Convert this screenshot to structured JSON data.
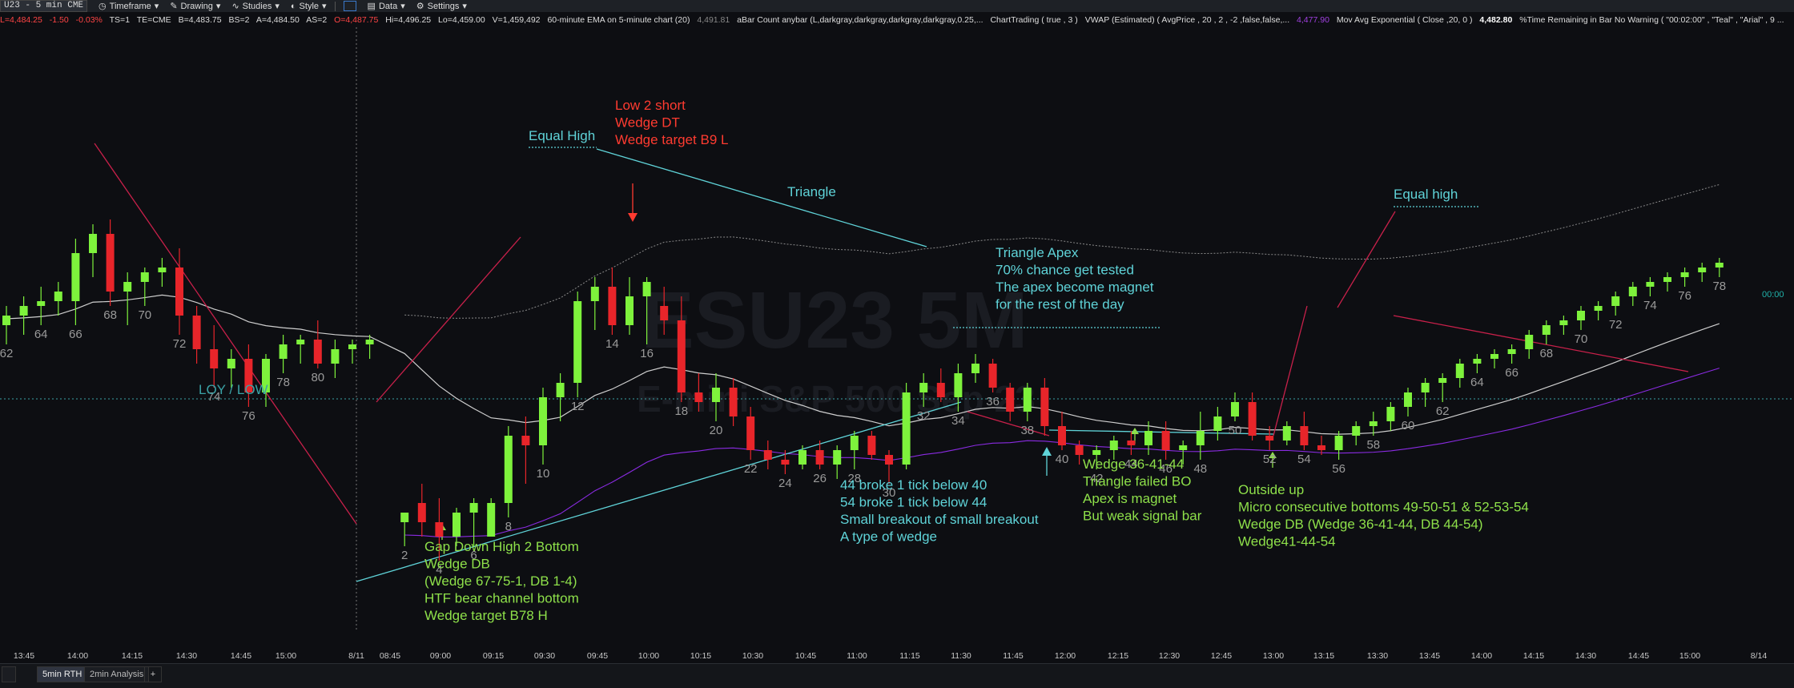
{
  "toolbar": {
    "symbol": "U23 - 5 min  CME",
    "timeframe": "Timeframe",
    "drawing": "Drawing",
    "studies": "Studies",
    "style": "Style",
    "data": "Data",
    "settings": "Settings"
  },
  "infoline": {
    "price": "L=4,484.25",
    "change": "-1.50",
    "pct": "-0.03%",
    "ts": "TS=1",
    "te": "TE=CME",
    "bid": "B=4,483.75",
    "bs": "BS=2",
    "ask": "A=4,484.50",
    "as": "AS=2",
    "open": "O=4,487.75",
    "hi": "Hi=4,496.25",
    "lo": "Lo=4,459.00",
    "vol": "V=1,459,492",
    "ema": "60-minute EMA on 5-minute chart (20)",
    "ema_val": "4,491.81",
    "abar": "aBar Count anybar (L,darkgray,darkgray,darkgray,darkgray,0.25,...",
    "chart_trading": "ChartTrading ( true , 3 )",
    "vwap": "VWAP (Estimated) ( AvgPrice , 20 , 2 , -2 ,false,false,...",
    "vwap_val": "4,477.90",
    "mov_avg": "Mov Avg Exponential ( Close ,20, 0 )",
    "mov_avg_val": "4,482.80",
    "time_remaining": "%Time Remaining in Bar No Warning ( \"00:02:00\" , \"Teal\" , \"Arial\" , 9 ..."
  },
  "tabs": [
    "5min RTH",
    "2min Analysis"
  ],
  "colors": {
    "bull": "#7ef23c",
    "bear": "#e8252a",
    "ema": "#cfcfcf",
    "vwap": "#8a2be2",
    "teal": "#5fd3d8",
    "green_text": "#8ee04a",
    "red_text": "#ff3b30",
    "crimson_line": "#c8204a",
    "gray_dotted": "#8a8a8a"
  },
  "chart_data": {
    "type": "candlestick",
    "watermark_symbol": "ESU23 5M",
    "watermark_name": "E-mini S&P 500 Sep 23",
    "price_label": "00:00",
    "time_labels": [
      "13:45",
      "14:00",
      "14:15",
      "14:30",
      "14:45",
      "15:00",
      "8/11",
      "08:45",
      "09:00",
      "09:15",
      "09:30",
      "09:45",
      "10:00",
      "10:15",
      "10:30",
      "10:45",
      "11:00",
      "11:15",
      "11:30",
      "11:45",
      "12:00",
      "12:15",
      "12:30",
      "12:45",
      "13:00",
      "13:15",
      "13:30",
      "13:45",
      "14:00",
      "14:15",
      "14:30",
      "14:45",
      "15:00",
      "8/14"
    ],
    "bar_numbers": [
      {
        "label": "62",
        "bar": 0
      },
      {
        "label": "64",
        "bar": 2
      },
      {
        "label": "66",
        "bar": 4
      },
      {
        "label": "68",
        "bar": 6
      },
      {
        "label": "70",
        "bar": 8
      },
      {
        "label": "72",
        "bar": 10
      },
      {
        "label": "74",
        "bar": 12
      },
      {
        "label": "76",
        "bar": 14
      },
      {
        "label": "78",
        "bar": 16
      },
      {
        "label": "80",
        "bar": 18
      },
      {
        "label": "2",
        "bar": 22
      },
      {
        "label": "4",
        "bar": 24
      },
      {
        "label": "6",
        "bar": 26
      },
      {
        "label": "8",
        "bar": 28
      },
      {
        "label": "10",
        "bar": 30
      },
      {
        "label": "12",
        "bar": 32
      },
      {
        "label": "14",
        "bar": 34
      },
      {
        "label": "16",
        "bar": 36
      },
      {
        "label": "18",
        "bar": 38
      },
      {
        "label": "20",
        "bar": 40
      },
      {
        "label": "22",
        "bar": 42
      },
      {
        "label": "24",
        "bar": 44
      },
      {
        "label": "26",
        "bar": 46
      },
      {
        "label": "28",
        "bar": 48
      },
      {
        "label": "30",
        "bar": 50
      },
      {
        "label": "32",
        "bar": 52
      },
      {
        "label": "34",
        "bar": 54
      },
      {
        "label": "36",
        "bar": 56
      },
      {
        "label": "38",
        "bar": 58
      },
      {
        "label": "40",
        "bar": 60
      },
      {
        "label": "42",
        "bar": 62
      },
      {
        "label": "44",
        "bar": 64
      },
      {
        "label": "46",
        "bar": 66
      },
      {
        "label": "48",
        "bar": 68
      },
      {
        "label": "50",
        "bar": 70
      },
      {
        "label": "52",
        "bar": 72
      },
      {
        "label": "54",
        "bar": 74
      },
      {
        "label": "56",
        "bar": 76
      },
      {
        "label": "58",
        "bar": 78
      },
      {
        "label": "60",
        "bar": 80
      },
      {
        "label": "62",
        "bar": 82
      },
      {
        "label": "64",
        "bar": 84
      },
      {
        "label": "66",
        "bar": 86
      },
      {
        "label": "68",
        "bar": 88
      },
      {
        "label": "70",
        "bar": 90
      },
      {
        "label": "72",
        "bar": 92
      },
      {
        "label": "74",
        "bar": 94
      },
      {
        "label": "76",
        "bar": 96
      },
      {
        "label": "78",
        "bar": 98
      },
      {
        "label": "80",
        "bar": 100
      }
    ],
    "bars": [
      {
        "o": 62,
        "h": 58,
        "l": 66,
        "c": 60
      },
      {
        "o": 60,
        "h": 56,
        "l": 64,
        "c": 58
      },
      {
        "o": 58,
        "h": 54,
        "l": 62,
        "c": 57
      },
      {
        "o": 57,
        "h": 53,
        "l": 60,
        "c": 55
      },
      {
        "o": 57,
        "h": 44,
        "l": 62,
        "c": 47
      },
      {
        "o": 47,
        "h": 41,
        "l": 52,
        "c": 43
      },
      {
        "o": 43,
        "h": 40,
        "l": 58,
        "c": 55
      },
      {
        "o": 55,
        "h": 51,
        "l": 62,
        "c": 53
      },
      {
        "o": 53,
        "h": 50,
        "l": 58,
        "c": 51
      },
      {
        "o": 51,
        "h": 48,
        "l": 54,
        "c": 50
      },
      {
        "o": 50,
        "h": 46,
        "l": 64,
        "c": 60
      },
      {
        "o": 60,
        "h": 58,
        "l": 70,
        "c": 67
      },
      {
        "o": 67,
        "h": 62,
        "l": 75,
        "c": 71
      },
      {
        "o": 71,
        "h": 67,
        "l": 75,
        "c": 69
      },
      {
        "o": 69,
        "h": 66,
        "l": 79,
        "c": 76
      },
      {
        "o": 76,
        "h": 68,
        "l": 79,
        "c": 69
      },
      {
        "o": 69,
        "h": 64,
        "l": 72,
        "c": 66
      },
      {
        "o": 66,
        "h": 64,
        "l": 70,
        "c": 65
      },
      {
        "o": 65,
        "h": 61,
        "l": 71,
        "c": 70
      },
      {
        "o": 70,
        "h": 65,
        "l": 73,
        "c": 67
      },
      {
        "o": 67,
        "h": 65,
        "l": 70,
        "c": 66
      },
      {
        "o": 66,
        "h": 64,
        "l": 69,
        "c": 65
      },
      {
        "o": 103,
        "h": 101,
        "l": 108,
        "c": 101
      },
      {
        "o": 99,
        "h": 95,
        "l": 106,
        "c": 103
      },
      {
        "o": 103,
        "h": 98,
        "l": 111,
        "c": 106
      },
      {
        "o": 106,
        "h": 100,
        "l": 108,
        "c": 101
      },
      {
        "o": 101,
        "h": 98,
        "l": 108,
        "c": 99
      },
      {
        "o": 106,
        "h": 98,
        "l": 106,
        "c": 99
      },
      {
        "o": 99,
        "h": 83,
        "l": 102,
        "c": 85
      },
      {
        "o": 85,
        "h": 81,
        "l": 95,
        "c": 87
      },
      {
        "o": 87,
        "h": 75,
        "l": 91,
        "c": 77
      },
      {
        "o": 77,
        "h": 72,
        "l": 82,
        "c": 74
      },
      {
        "o": 74,
        "h": 55,
        "l": 77,
        "c": 57
      },
      {
        "o": 57,
        "h": 52,
        "l": 63,
        "c": 54
      },
      {
        "o": 54,
        "h": 50,
        "l": 64,
        "c": 62
      },
      {
        "o": 62,
        "h": 52,
        "l": 64,
        "c": 56
      },
      {
        "o": 56,
        "h": 52,
        "l": 66,
        "c": 53
      },
      {
        "o": 58,
        "h": 54,
        "l": 64,
        "c": 61
      },
      {
        "o": 61,
        "h": 56,
        "l": 78,
        "c": 76
      },
      {
        "o": 76,
        "h": 72,
        "l": 80,
        "c": 78
      },
      {
        "o": 78,
        "h": 72,
        "l": 82,
        "c": 75
      },
      {
        "o": 75,
        "h": 73,
        "l": 83,
        "c": 81
      },
      {
        "o": 81,
        "h": 79,
        "l": 90,
        "c": 88
      },
      {
        "o": 88,
        "h": 86,
        "l": 92,
        "c": 90
      },
      {
        "o": 90,
        "h": 88,
        "l": 93,
        "c": 91
      },
      {
        "o": 91,
        "h": 87,
        "l": 92,
        "c": 88
      },
      {
        "o": 88,
        "h": 86,
        "l": 92,
        "c": 91
      },
      {
        "o": 91,
        "h": 87,
        "l": 94,
        "c": 88
      },
      {
        "o": 88,
        "h": 84,
        "l": 92,
        "c": 85
      },
      {
        "o": 85,
        "h": 84,
        "l": 90,
        "c": 89
      },
      {
        "o": 89,
        "h": 88,
        "l": 95,
        "c": 91
      },
      {
        "o": 91,
        "h": 74,
        "l": 92,
        "c": 76
      },
      {
        "o": 76,
        "h": 72,
        "l": 79,
        "c": 74
      },
      {
        "o": 74,
        "h": 71,
        "l": 78,
        "c": 77
      },
      {
        "o": 77,
        "h": 70,
        "l": 80,
        "c": 72
      },
      {
        "o": 72,
        "h": 68,
        "l": 74,
        "c": 70
      },
      {
        "o": 70,
        "h": 69,
        "l": 76,
        "c": 75
      },
      {
        "o": 75,
        "h": 74,
        "l": 82,
        "c": 80
      },
      {
        "o": 80,
        "h": 74,
        "l": 82,
        "c": 75
      },
      {
        "o": 75,
        "h": 73,
        "l": 85,
        "c": 83
      },
      {
        "o": 83,
        "h": 80,
        "l": 88,
        "c": 87
      },
      {
        "o": 87,
        "h": 86,
        "l": 91,
        "c": 89
      },
      {
        "o": 89,
        "h": 87,
        "l": 92,
        "c": 88
      },
      {
        "o": 88,
        "h": 85,
        "l": 90,
        "c": 86
      },
      {
        "o": 86,
        "h": 84,
        "l": 89,
        "c": 87
      },
      {
        "o": 87,
        "h": 82,
        "l": 89,
        "c": 84
      },
      {
        "o": 84,
        "h": 82,
        "l": 90,
        "c": 88
      },
      {
        "o": 88,
        "h": 86,
        "l": 91,
        "c": 87
      },
      {
        "o": 87,
        "h": 80,
        "l": 90,
        "c": 84
      },
      {
        "o": 84,
        "h": 79,
        "l": 86,
        "c": 81
      },
      {
        "o": 81,
        "h": 76,
        "l": 82,
        "c": 78
      },
      {
        "o": 78,
        "h": 76,
        "l": 86,
        "c": 85
      },
      {
        "o": 85,
        "h": 83,
        "l": 88,
        "c": 86
      },
      {
        "o": 86,
        "h": 82,
        "l": 87,
        "c": 83
      },
      {
        "o": 83,
        "h": 80,
        "l": 88,
        "c": 87
      },
      {
        "o": 87,
        "h": 85,
        "l": 89,
        "c": 88
      },
      {
        "o": 88,
        "h": 84,
        "l": 90,
        "c": 85
      },
      {
        "o": 85,
        "h": 82,
        "l": 87,
        "c": 83
      },
      {
        "o": 83,
        "h": 80,
        "l": 85,
        "c": 82
      },
      {
        "o": 82,
        "h": 78,
        "l": 84,
        "c": 79
      },
      {
        "o": 79,
        "h": 75,
        "l": 81,
        "c": 76
      },
      {
        "o": 76,
        "h": 73,
        "l": 79,
        "c": 74
      },
      {
        "o": 74,
        "h": 72,
        "l": 78,
        "c": 73
      },
      {
        "o": 73,
        "h": 69,
        "l": 75,
        "c": 70
      },
      {
        "o": 70,
        "h": 68,
        "l": 72,
        "c": 69
      },
      {
        "o": 69,
        "h": 67,
        "l": 71,
        "c": 68
      },
      {
        "o": 68,
        "h": 66,
        "l": 70,
        "c": 67
      },
      {
        "o": 67,
        "h": 63,
        "l": 69,
        "c": 64
      },
      {
        "o": 64,
        "h": 61,
        "l": 66,
        "c": 62
      },
      {
        "o": 62,
        "h": 60,
        "l": 64,
        "c": 61
      },
      {
        "o": 61,
        "h": 58,
        "l": 63,
        "c": 59
      },
      {
        "o": 59,
        "h": 57,
        "l": 61,
        "c": 58
      },
      {
        "o": 58,
        "h": 55,
        "l": 60,
        "c": 56
      },
      {
        "o": 56,
        "h": 53,
        "l": 58,
        "c": 54
      },
      {
        "o": 54,
        "h": 52,
        "l": 56,
        "c": 53
      },
      {
        "o": 53,
        "h": 51,
        "l": 55,
        "c": 52
      },
      {
        "o": 52,
        "h": 50,
        "l": 54,
        "c": 51
      },
      {
        "o": 51,
        "h": 49,
        "l": 53,
        "c": 50
      },
      {
        "o": 50,
        "h": 48,
        "l": 52,
        "c": 49
      }
    ],
    "annotations": [
      {
        "id": "gap-down",
        "color": "green",
        "lines": [
          "Gap Down High 2 Bottom",
          "Wedge DB",
          "(Wedge 67-75-1, DB 1-4)",
          "HTF bear channel bottom",
          "Wedge target B78 H"
        ]
      },
      {
        "id": "low2-short",
        "color": "red",
        "lines": [
          "Low 2 short",
          "Wedge DT",
          "Wedge target B9 L"
        ]
      },
      {
        "id": "equal-high-1",
        "color": "teal",
        "lines": [
          "Equal High"
        ]
      },
      {
        "id": "triangle",
        "color": "teal",
        "lines": [
          "Triangle"
        ]
      },
      {
        "id": "triangle-apex",
        "color": "teal",
        "lines": [
          "Triangle Apex",
          "70% chance get tested",
          "The apex become magnet",
          "for the rest of the day"
        ]
      },
      {
        "id": "small-breakout",
        "color": "teal",
        "lines": [
          "44 broke 1 tick below 40",
          "54 broke 1 tick below 44",
          "Small breakout of small breakout",
          "A type of wedge"
        ]
      },
      {
        "id": "wedge-36",
        "color": "green",
        "lines": [
          "Wedge 36-41-44",
          "Triangle failed BO",
          "Apex is magnet",
          "But weak signal bar"
        ]
      },
      {
        "id": "outside-up",
        "color": "green",
        "lines": [
          "Outside up",
          "Micro consecutive bottoms 49-50-51 & 52-53-54",
          "Wedge DB (Wedge 36-41-44, DB 44-54)",
          "Wedge41-44-54"
        ]
      },
      {
        "id": "equal-high-2",
        "color": "teal",
        "lines": [
          "Equal high"
        ]
      },
      {
        "id": "loy-low",
        "color": "teal",
        "lines": [
          "LOY / LOW"
        ]
      }
    ]
  }
}
